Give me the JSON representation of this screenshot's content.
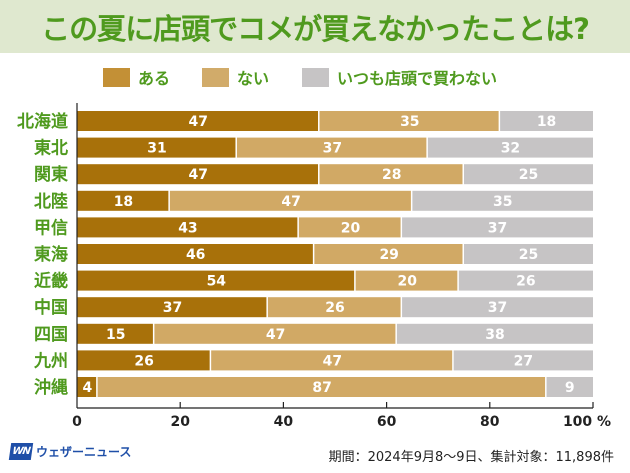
{
  "colors": {
    "header_bg": "#dfe8cf",
    "title": "#4f9a1e",
    "aru": "#a8710a",
    "nai": "#d1a965",
    "never": "#c6c4c5",
    "brand": "#1f4fa8"
  },
  "header": {
    "title": "この夏に店頭でコメが買えなかったことは?"
  },
  "legend": [
    {
      "label": "ある",
      "color": "#c39036"
    },
    {
      "label": "ない",
      "color": "#d1ab6a"
    },
    {
      "label": "いつも店頭で買わない",
      "color": "#c6c4c5"
    }
  ],
  "chart_data": {
    "type": "bar",
    "orientation": "horizontal",
    "stacked": true,
    "title": "この夏に店頭でコメが買えなかったことは?",
    "xlabel": "",
    "ylabel": "",
    "xlim": [
      0,
      100
    ],
    "x_unit": "%",
    "x_ticks": [
      "0",
      "20",
      "40",
      "60",
      "80",
      "100 %"
    ],
    "x_tick_values": [
      0,
      20,
      40,
      60,
      80,
      100
    ],
    "grid": false,
    "legend_position": "top-center",
    "categories": [
      "北海道",
      "東北",
      "関東",
      "北陸",
      "甲信",
      "東海",
      "近畿",
      "中国",
      "四国",
      "九州",
      "沖縄"
    ],
    "series": [
      {
        "name": "ある",
        "color": "#a8710a",
        "values": [
          47,
          31,
          47,
          18,
          43,
          46,
          54,
          37,
          15,
          26,
          4
        ]
      },
      {
        "name": "ない",
        "color": "#d1a965",
        "values": [
          35,
          37,
          28,
          47,
          20,
          29,
          20,
          26,
          47,
          47,
          87
        ]
      },
      {
        "name": "いつも店頭で買わない",
        "color": "#c6c4c5",
        "values": [
          18,
          32,
          25,
          35,
          37,
          25,
          26,
          37,
          38,
          27,
          9
        ]
      }
    ]
  },
  "footer": {
    "brand": "ウェザーニュース",
    "brand_mark": "WN",
    "note": "期間：2024年9月8～9日、集計対象：11,898件"
  }
}
